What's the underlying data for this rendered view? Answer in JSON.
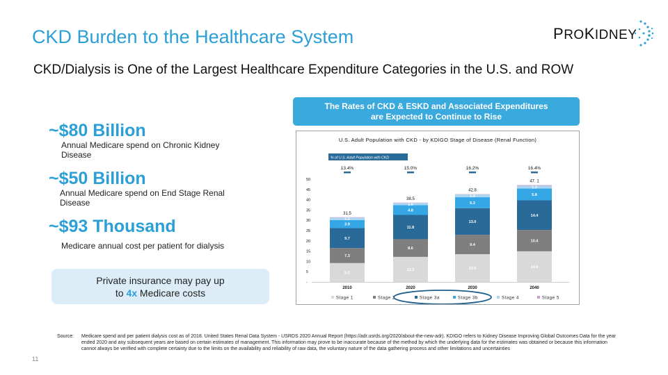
{
  "slide": {
    "title": "CKD Burden to the Healthcare System",
    "subtitle": "CKD/Dialysis is One of the Largest Healthcare Expenditure Categories in the U.S. and ROW",
    "page_number": "11"
  },
  "logo": {
    "text_first": "P",
    "text_rest1": "RO",
    "text_mid": "K",
    "text_rest2": "IDNEY"
  },
  "stats": [
    {
      "value": "~$80 Billion",
      "desc": "Annual Medicare spend on Chronic Kidney Disease"
    },
    {
      "value": "~$50 Billion",
      "desc": "Annual Medicare spend on End Stage Renal Disease"
    },
    {
      "value": "~$93 Thousand",
      "desc": "Medicare annual cost per patient for dialysis"
    }
  ],
  "callout": {
    "line1": "Private insurance may pay up",
    "line2_pre": "to ",
    "line2_highlight": "4x",
    "line2_post": " Medicare costs"
  },
  "banner": {
    "line1": "The Rates of CKD & ESKD and Associated Expenditures",
    "line2": "are Expected to Continue to Rise"
  },
  "source": {
    "label": "Source:",
    "text": "Medicare spend and per patient dialysis cost as of 2018. United States Renal Data System - USRDS 2020 Annual Report (https://adr.usrds.org/2020/about-the-new-adr). KDIGO refers to Kidney Disease Improving Global Outcomes Data for the year ended 2020 and any subsequent years are based on certain estimates of management. This information may prove to be inaccurate because of the method by which the underlying data for the estimates was obtained or because this information cannot always be verified with complete certainty due to the limits on the availability and reliability of raw data, the voluntary nature of the data gathering process and other limitations and uncertainties"
  },
  "chart_data": {
    "type": "bar",
    "stacked": true,
    "title": "U.S. Adult Population with CKD - by KDIGO Stage of Disease (Renal Function)",
    "annotation_label": "% of U.S. Adult Population with CKD",
    "categories": [
      "2010",
      "2020",
      "2030",
      "2040"
    ],
    "pct_labels": [
      "13.4%",
      "15.0%",
      "16.2%",
      "16.4%"
    ],
    "totals": [
      31.5,
      38.5,
      42.8,
      47.1
    ],
    "total_labels": [
      "31.5",
      "38.5",
      "42.8",
      "47. 1"
    ],
    "yticks": [
      "50",
      "45",
      "40",
      "35",
      "30",
      "25",
      "20",
      "15",
      "10",
      "5",
      "-"
    ],
    "ylim": [
      0,
      50
    ],
    "series": [
      {
        "name": "Stage 1",
        "color": "#d9d9d9",
        "values": [
          9.2,
          12.2,
          13.5,
          14.9
        ],
        "labels": [
          "9.2",
          "12.2",
          "13.5",
          "14.9"
        ]
      },
      {
        "name": "Stage 2",
        "color": "#7f7f7f",
        "values": [
          7.3,
          8.6,
          9.4,
          10.4
        ],
        "labels": [
          "7.3",
          "8.6",
          "9.4",
          "10.4"
        ]
      },
      {
        "name": "Stage 3a",
        "color": "#2a6a99",
        "values": [
          9.7,
          11.8,
          13.0,
          14.4
        ],
        "labels": [
          "9.7",
          "11.8",
          "13.0",
          "14.4"
        ]
      },
      {
        "name": "Stage 3b",
        "color": "#35a7e6",
        "values": [
          3.9,
          4.8,
          5.3,
          5.8
        ],
        "labels": [
          "3.9",
          "4.8",
          "5.3",
          "5.8"
        ]
      },
      {
        "name": "Stage 4",
        "color": "#a9d6f2",
        "values": [
          1.2,
          1.0,
          1.3,
          1.3
        ],
        "labels": [
          "1.2",
          "1.0",
          "1.3",
          "1.3"
        ]
      },
      {
        "name": "Stage 5",
        "color": "#c8a2c8",
        "values": [
          0.2,
          0.2,
          0.2,
          0.3
        ],
        "labels": [
          "",
          "",
          "",
          ""
        ]
      }
    ],
    "legend": [
      "Stage 1",
      "Stage 2",
      "Stage 3a",
      "Stage 3b",
      "Stage 4",
      "Stage 5"
    ],
    "highlighted_legend": [
      "Stage 3a",
      "Stage 3b"
    ]
  },
  "colors": {
    "accent": "#2b9fd6",
    "banner": "#3aa9dd",
    "callout_bg": "#dcedf7",
    "highlight_ellipse": "#1e5f8c"
  }
}
